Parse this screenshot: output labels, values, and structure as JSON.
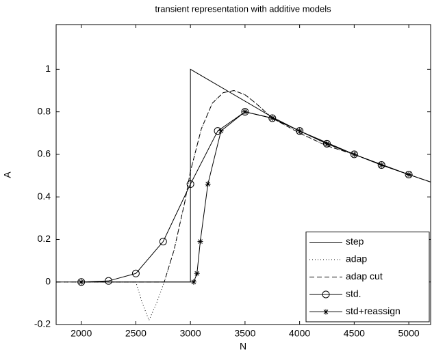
{
  "chart_data": {
    "type": "line",
    "title": "transient representation with additive models",
    "x_label": "N",
    "y_label": "A",
    "xlim": [
      1770,
      5200
    ],
    "ylim": [
      -0.2,
      1.21
    ],
    "xticks": [
      2000,
      2500,
      3000,
      3500,
      4000,
      4500,
      5000
    ],
    "yticks": [
      -0.2,
      0,
      0.2,
      0.4,
      0.6,
      0.8,
      1
    ],
    "legend": "lower right",
    "series": [
      {
        "name": "step",
        "color": "#000000",
        "dash": "solid",
        "marker": "none",
        "x": [
          1770,
          3000,
          3000,
          3750,
          4000,
          4500,
          5000,
          5200
        ],
        "values": [
          0,
          0,
          1,
          0.775,
          0.71,
          0.6,
          0.505,
          0.47
        ]
      },
      {
        "name": "adap",
        "color": "#000000",
        "dash": "dotted",
        "marker": "none",
        "x": [
          1770,
          2500,
          2560,
          2620,
          2690,
          2760,
          2850,
          2950,
          3000,
          3100,
          3200,
          3300,
          3400,
          3500,
          3600,
          3750,
          4000,
          4250,
          4500,
          4750,
          5000,
          5200
        ],
        "values": [
          0,
          0,
          -0.1,
          -0.18,
          -0.1,
          0,
          0.15,
          0.38,
          0.52,
          0.72,
          0.84,
          0.89,
          0.9,
          0.88,
          0.84,
          0.77,
          0.7,
          0.64,
          0.6,
          0.55,
          0.505,
          0.47
        ]
      },
      {
        "name": "adap cut",
        "color": "#000000",
        "dash": "dashed",
        "marker": "none",
        "x": [
          1770,
          2760,
          2850,
          2950,
          3000,
          3100,
          3200,
          3300,
          3400,
          3500,
          3600,
          3750,
          4000,
          4250,
          4500,
          4750,
          5000,
          5200
        ],
        "values": [
          0,
          0,
          0.15,
          0.38,
          0.52,
          0.72,
          0.84,
          0.89,
          0.9,
          0.88,
          0.84,
          0.77,
          0.7,
          0.64,
          0.6,
          0.55,
          0.505,
          0.47
        ]
      },
      {
        "name": "std.",
        "color": "#000000",
        "dash": "solid",
        "marker": "circle",
        "x": [
          2000,
          2250,
          2500,
          2750,
          3000,
          3250,
          3500,
          3750,
          4000,
          4250,
          4500,
          4750,
          5000
        ],
        "values": [
          0,
          0.005,
          0.04,
          0.19,
          0.46,
          0.71,
          0.8,
          0.77,
          0.71,
          0.65,
          0.6,
          0.55,
          0.505
        ]
      },
      {
        "name": "std+reassign",
        "color": "#000000",
        "dash": "solid",
        "marker": "star",
        "x": [
          2000,
          3030,
          3060,
          3090,
          3160,
          3280,
          3500,
          3750,
          4000,
          4250,
          4500,
          4750,
          5000
        ],
        "values": [
          0,
          0,
          0.04,
          0.19,
          0.46,
          0.71,
          0.8,
          0.77,
          0.71,
          0.65,
          0.6,
          0.55,
          0.505
        ]
      }
    ]
  }
}
